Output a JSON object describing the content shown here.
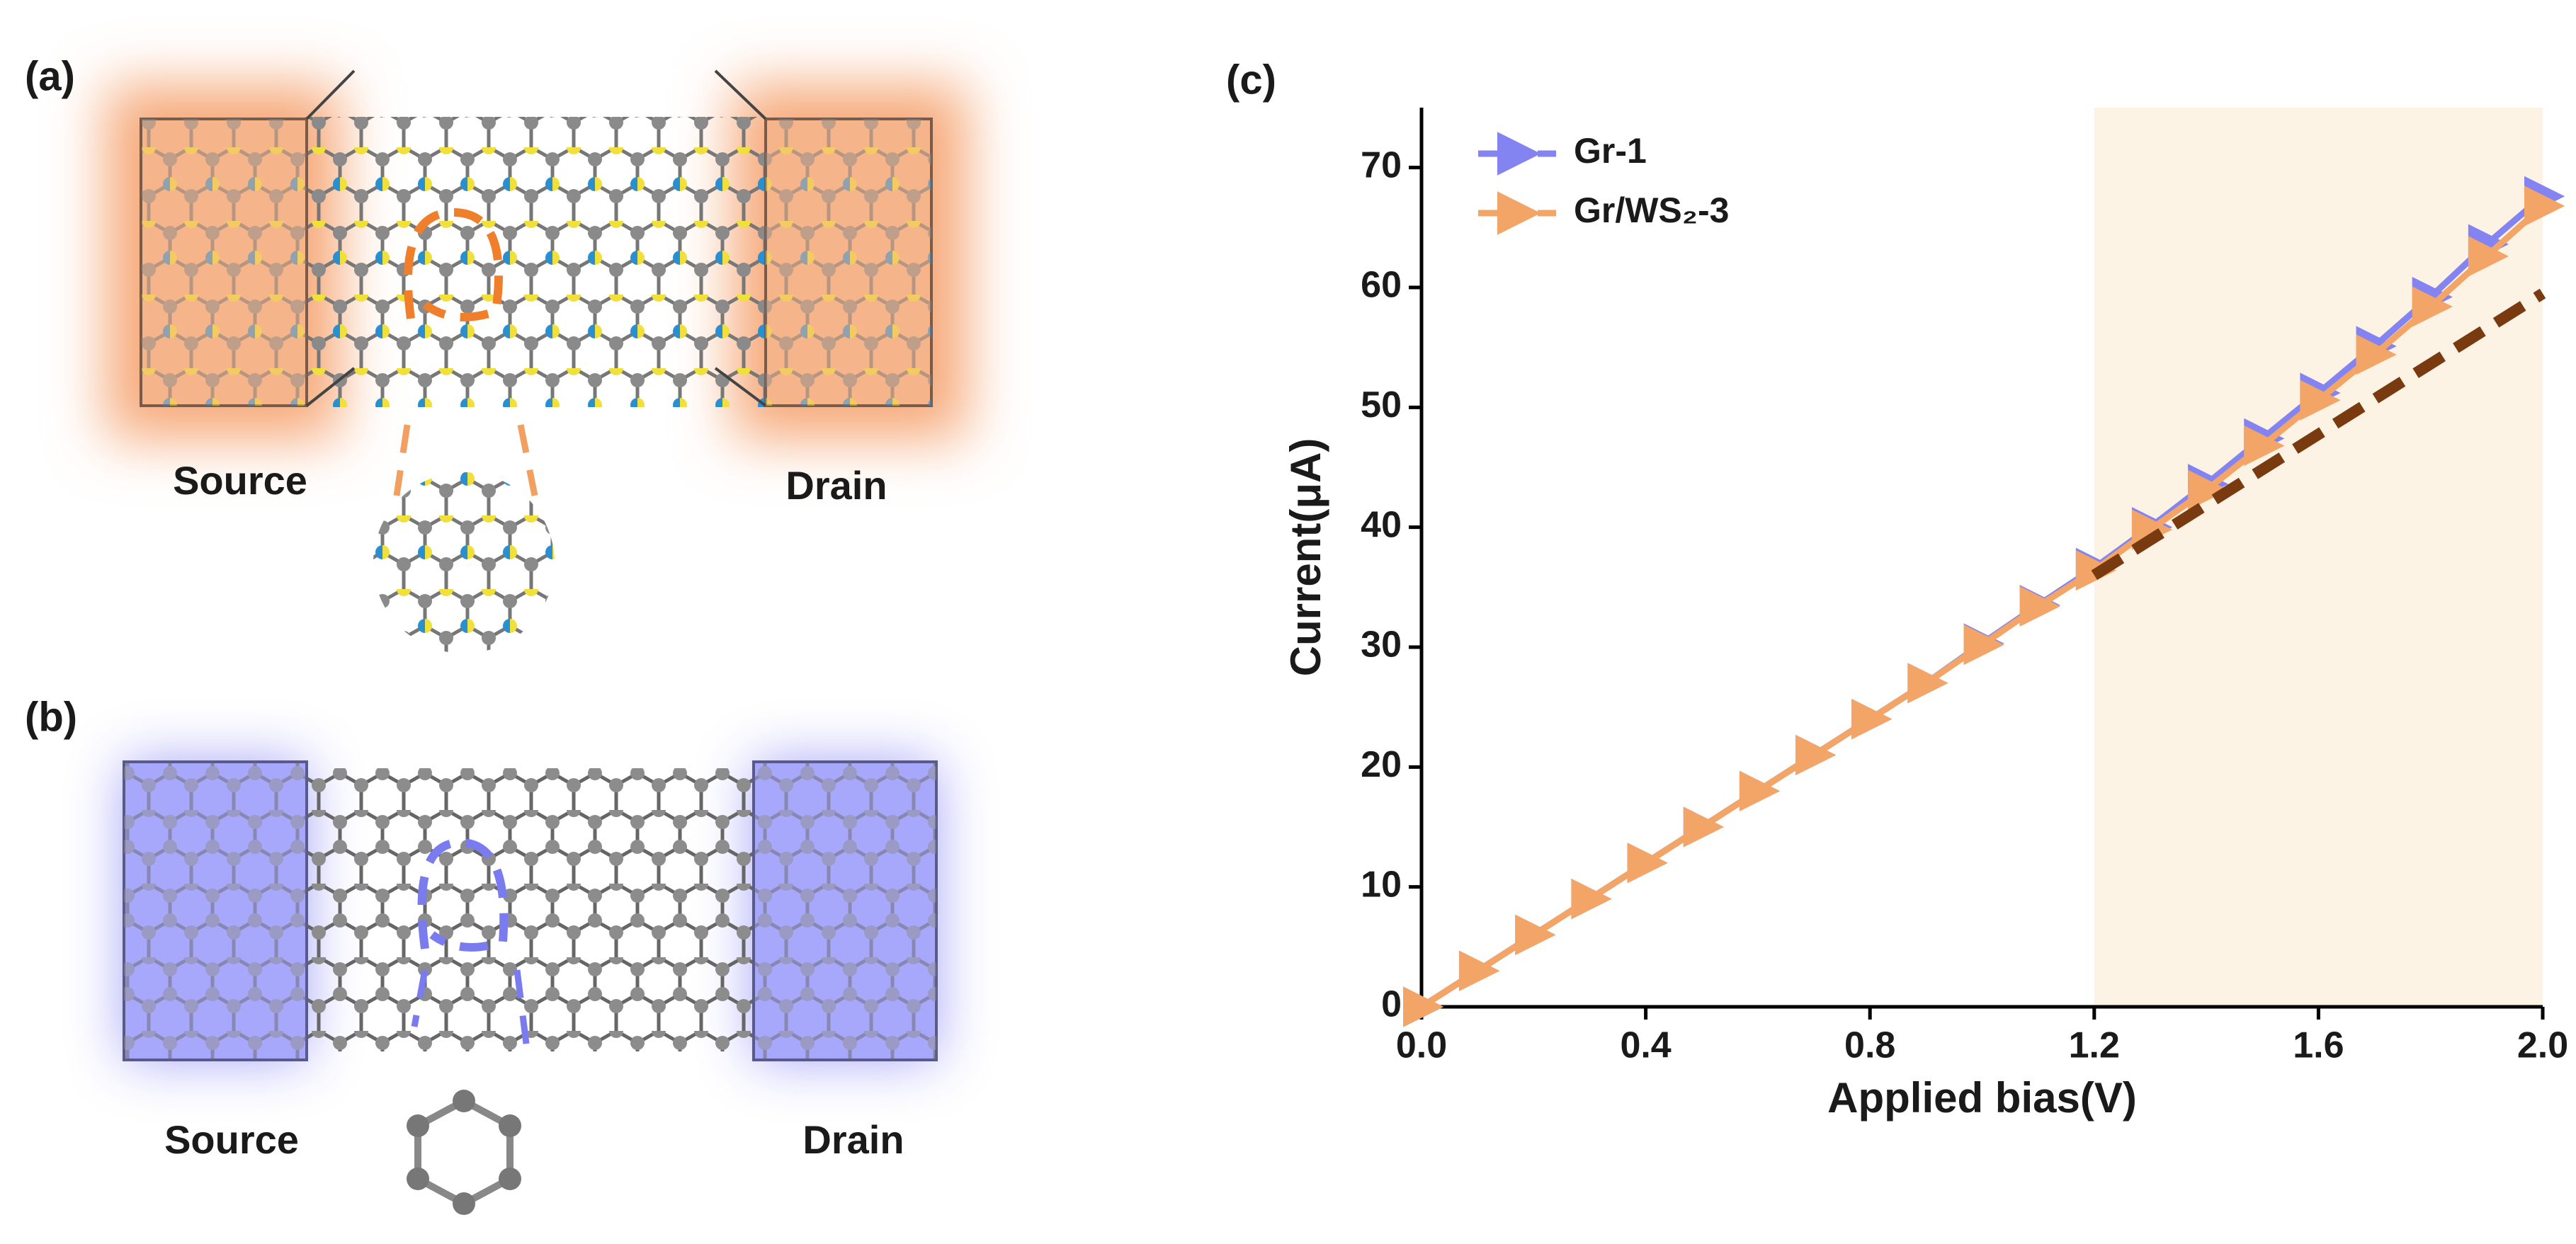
{
  "panels": {
    "a": {
      "label": "(a)",
      "source": "Source",
      "drain": "Drain"
    },
    "b": {
      "label": "(b)",
      "source": "Source",
      "drain": "Drain"
    }
  },
  "chart_data": {
    "type": "line",
    "panel_label": "(c)",
    "x_label": "Applied bias(V)",
    "y_label": "Current(μA)",
    "x": [
      0,
      0.1,
      0.2,
      0.3,
      0.4,
      0.5,
      0.6,
      0.7,
      0.8,
      0.9,
      1.0,
      1.1,
      1.2,
      1.3,
      1.4,
      1.5,
      1.6,
      1.7,
      1.8,
      1.9,
      2.0
    ],
    "series": [
      {
        "name": "Gr-1",
        "color": "#8383f2",
        "values": [
          0,
          3,
          6,
          9,
          12,
          15,
          18,
          21,
          24,
          27,
          30.3,
          33.5,
          36.6,
          40,
          43.6,
          47.4,
          51.2,
          55.1,
          59.2,
          63.6,
          67.6
        ]
      },
      {
        "name": "Gr/WS₂-3",
        "color": "#f3a467",
        "values": [
          0,
          3,
          6,
          9,
          12,
          15,
          18,
          21,
          24,
          27,
          30.2,
          33.4,
          36.4,
          39.8,
          43.1,
          46.8,
          50.6,
          54.4,
          58.4,
          62.6,
          66.8
        ]
      }
    ],
    "trend_line": {
      "x": [
        1.2,
        2.0
      ],
      "values": [
        36,
        59.5
      ],
      "color": "#7a3a10"
    },
    "highlight_range": [
      1.2,
      2.0
    ],
    "highlight_color": "#fdf3e5",
    "xlim": [
      0,
      2.0
    ],
    "ylim": [
      0,
      75
    ],
    "xticks": [
      {
        "value": 0,
        "label": "0.0"
      },
      0.4,
      0.8,
      1.2,
      1.6,
      {
        "value": 2,
        "label": "2.0"
      }
    ],
    "yticks": [
      0,
      10,
      20,
      30,
      40,
      50,
      60,
      70
    ],
    "legend": "upper-left"
  }
}
